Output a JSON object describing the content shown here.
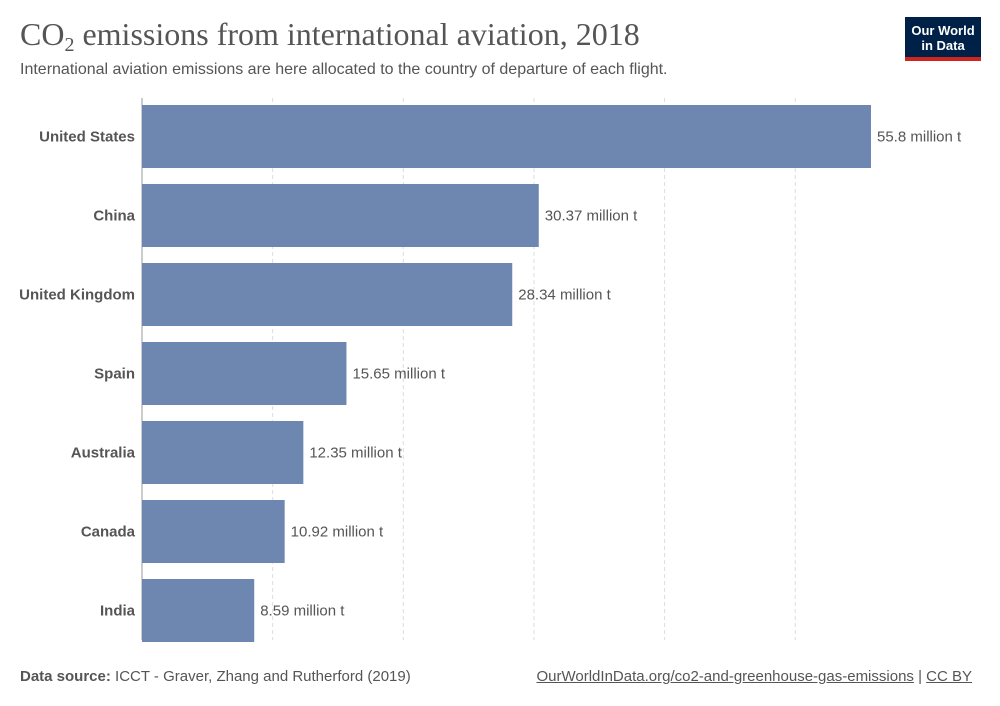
{
  "header": {
    "title_prefix": "CO",
    "title_subscript": "2",
    "title_suffix": " emissions from international aviation, 2018",
    "subtitle": "International aviation emissions are here allocated to the country of departure of each flight."
  },
  "logo": {
    "line1": "Our World",
    "line2": "in Data",
    "bg_color": "#002147",
    "accent_color": "#ce261e"
  },
  "footer": {
    "source_label": "Data source:",
    "source_text": " ICCT - Graver, Zhang and Rutherford (2019)",
    "url_text": "OurWorldInData.org/co2-and-greenhouse-gas-emissions",
    "separator": " | ",
    "license": "CC BY"
  },
  "chart_data": {
    "type": "bar",
    "orientation": "horizontal",
    "categories": [
      "United States",
      "China",
      "United Kingdom",
      "Spain",
      "Australia",
      "Canada",
      "India"
    ],
    "values": [
      55.8,
      30.37,
      28.34,
      15.65,
      12.35,
      10.92,
      8.59
    ],
    "value_labels": [
      "55.8 million t",
      "30.37 million t",
      "28.34 million t",
      "15.65 million t",
      "12.35 million t",
      "10.92 million t",
      "8.59 million t"
    ],
    "xlim": [
      0,
      55.8
    ],
    "grid_ticks": [
      0,
      10,
      20,
      30,
      40,
      50
    ],
    "grid": true,
    "bar_color": "#6d87b0"
  }
}
